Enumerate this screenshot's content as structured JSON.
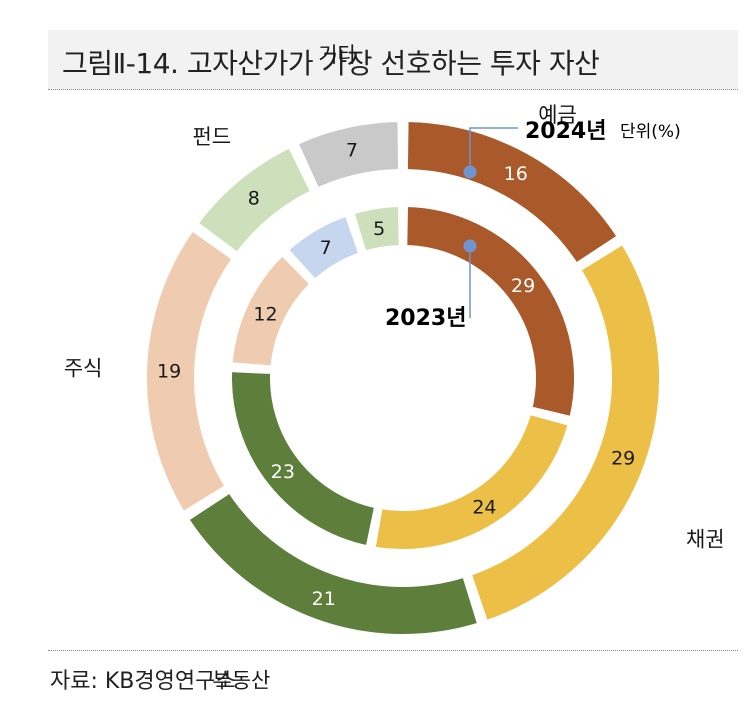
{
  "header": {
    "title": "그림Ⅱ-14. 고자산가가 가장 선호하는 투자 자산"
  },
  "footer": {
    "source": "자료: KB경영연구소"
  },
  "chart_data": {
    "type": "pie",
    "unit_label": "단위(%)",
    "categories": [
      "예금",
      "채권",
      "부동산",
      "주식",
      "펀드",
      "기타"
    ],
    "series": [
      {
        "name": "2024년",
        "values": [
          16,
          29,
          21,
          19,
          8,
          7
        ]
      },
      {
        "name": "2023년",
        "values": [
          29,
          24,
          23,
          12,
          7,
          5
        ]
      }
    ],
    "colors": [
      "#a9592a",
      "#ecc046",
      "#5e7f3c",
      "#efcbaf",
      "#cde0bb",
      "#c9c9c9"
    ],
    "inner_colors": [
      "#a9592a",
      "#ecc046",
      "#5e7f3c",
      "#efcbaf",
      "#c5d6ee",
      "#cde0bb"
    ],
    "marker_color": "#6f95d0"
  }
}
